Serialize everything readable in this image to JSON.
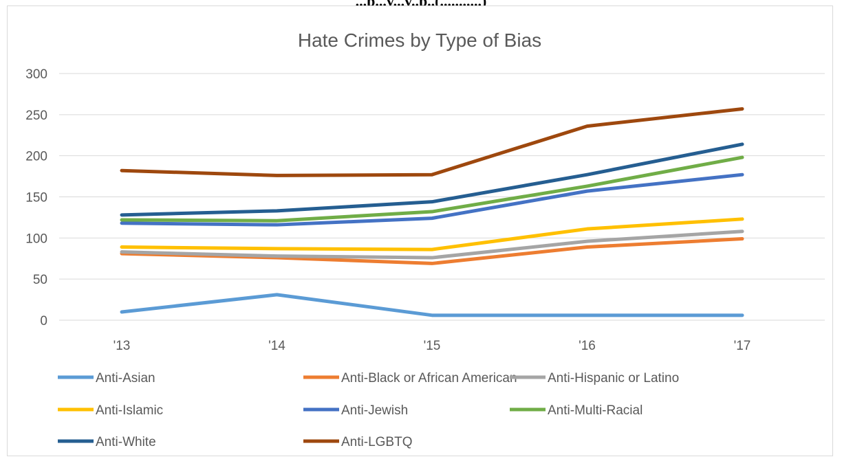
{
  "page": {
    "heading": "...p...y...y..p..(...........)"
  },
  "chart_data": {
    "type": "line",
    "title": "Hate Crimes by Type of Bias",
    "xlabel": "",
    "ylabel": "",
    "categories": [
      "'13",
      "'14",
      "'15",
      "'16",
      "'17"
    ],
    "ylim": [
      0,
      300
    ],
    "yticks": [
      0,
      50,
      100,
      150,
      200,
      250,
      300
    ],
    "grid": true,
    "legend_position": "bottom",
    "series": [
      {
        "name": "Anti-Asian",
        "color": "#5b9bd5",
        "values": [
          10,
          31,
          6,
          6,
          6
        ]
      },
      {
        "name": "Anti-Black or African American",
        "color": "#ed7d31",
        "values": [
          81,
          76,
          69,
          89,
          99
        ]
      },
      {
        "name": "Anti-Hispanic or Latino",
        "color": "#a5a5a5",
        "values": [
          83,
          78,
          76,
          96,
          108
        ]
      },
      {
        "name": "Anti-Islamic",
        "color": "#ffc000",
        "values": [
          89,
          87,
          86,
          111,
          123
        ]
      },
      {
        "name": "Anti-Jewish",
        "color": "#4472c4",
        "values": [
          118,
          116,
          124,
          157,
          177
        ]
      },
      {
        "name": "Anti-Multi-Racial",
        "color": "#70ad47",
        "values": [
          122,
          121,
          132,
          163,
          198
        ]
      },
      {
        "name": "Anti-White",
        "color": "#255e91",
        "values": [
          128,
          133,
          144,
          177,
          214
        ]
      },
      {
        "name": "Anti-LGBTQ",
        "color": "#9e480e",
        "values": [
          182,
          176,
          177,
          236,
          257
        ]
      }
    ]
  }
}
